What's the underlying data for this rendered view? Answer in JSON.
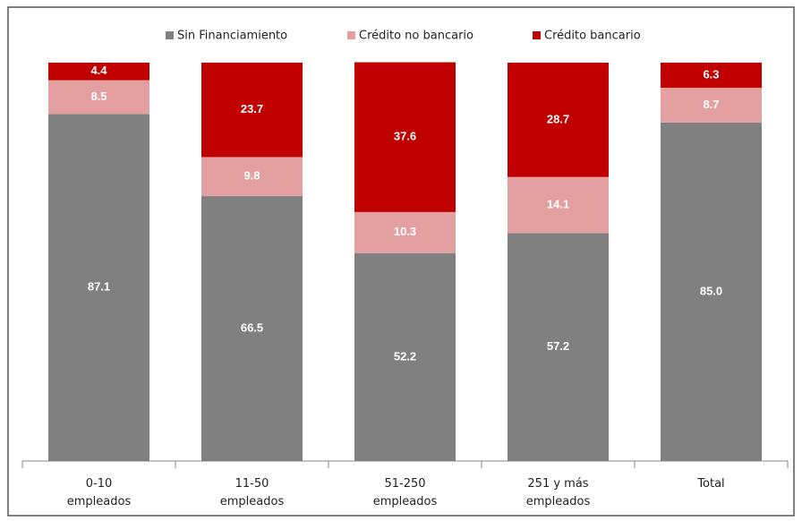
{
  "chart_data": {
    "type": "stacked_bar",
    "categories": [
      [
        "0-10",
        "empleados"
      ],
      [
        "11-50",
        "empleados"
      ],
      [
        "51-250",
        "empleados"
      ],
      [
        "251 y más",
        "empleados"
      ],
      [
        "Total"
      ]
    ],
    "series": [
      {
        "name": "Sin Financiamiento",
        "color": "#808080",
        "values": [
          87.1,
          66.5,
          52.2,
          57.2,
          85.0
        ],
        "value_labels": [
          "87.1",
          "66.5",
          "52.2",
          "57.2",
          "85.0"
        ]
      },
      {
        "name": "Crédito no bancario",
        "color": "#e4a0a0",
        "values": [
          8.5,
          9.8,
          10.3,
          14.1,
          8.7
        ],
        "value_labels": [
          "8.5",
          "9.8",
          "10.3",
          "14.1",
          "8.7"
        ]
      },
      {
        "name": "Crédito bancario",
        "color": "#c00000",
        "values": [
          4.4,
          23.7,
          37.6,
          28.7,
          6.3
        ],
        "value_labels": [
          "4.4",
          "23.7",
          "37.6",
          "28.7",
          "6.3"
        ]
      }
    ],
    "ylim": [
      0,
      100
    ]
  }
}
